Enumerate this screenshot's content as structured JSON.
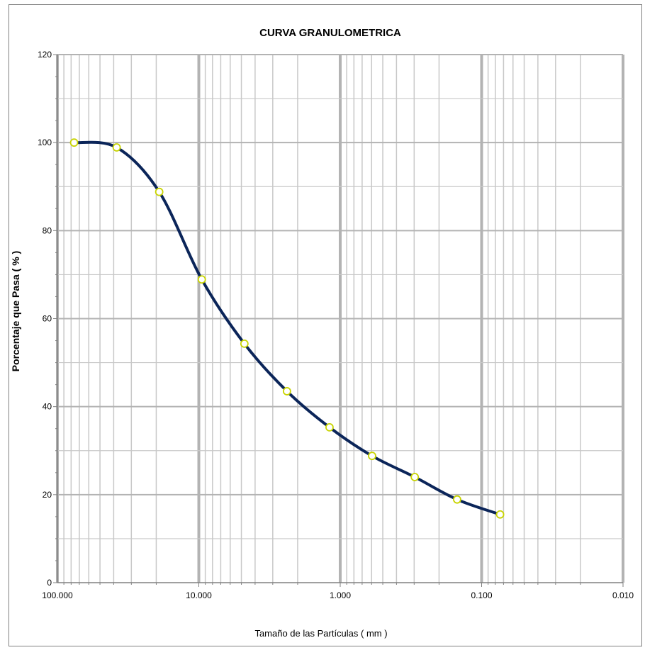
{
  "chart_data": {
    "type": "line",
    "title": "CURVA GRANULOMETRICA",
    "xlabel": "Tamaño de las Partículas ( mm )",
    "ylabel": "Porcentaje que Pasa ( % )",
    "x_scale": "log",
    "x_reversed": true,
    "xlim": [
      100,
      0.01
    ],
    "ylim": [
      0,
      120
    ],
    "x_ticks": [
      100,
      10,
      1,
      0.1,
      0.01
    ],
    "x_tick_labels": [
      "100.000",
      "10.000",
      "1.000",
      "0.100",
      "0.010"
    ],
    "y_ticks": [
      0,
      20,
      40,
      60,
      80,
      100,
      120
    ],
    "y_tick_labels": [
      "0",
      "20",
      "40",
      "60",
      "80",
      "100",
      "120"
    ],
    "grid": true,
    "colors": {
      "line": "#0b2559",
      "marker_fill": "#ffffff",
      "marker_edge": "#c8d400",
      "grid_major": "#b3b3b3",
      "grid_minor": "#c8c8c8"
    },
    "series": [
      {
        "x": [
          76.2,
          38.1,
          19.05,
          9.525,
          4.76,
          2.38,
          1.19,
          0.595,
          0.297,
          0.149,
          0.074
        ],
        "y": [
          100.0,
          98.9,
          88.8,
          68.9,
          54.3,
          43.5,
          35.3,
          28.8,
          24.0,
          18.9,
          15.5
        ]
      }
    ]
  }
}
